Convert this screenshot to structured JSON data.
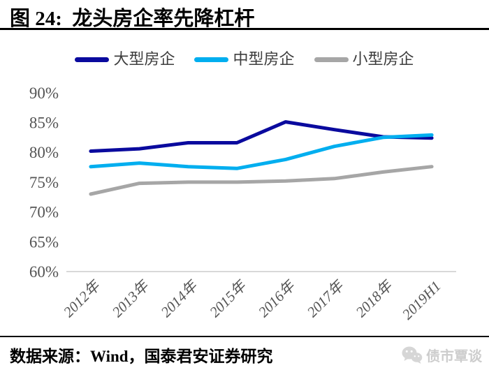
{
  "title": "图 24:  龙头房企率先降杠杆",
  "chart_data": {
    "type": "line",
    "categories": [
      "2012年",
      "2013年",
      "2014年",
      "2015年",
      "2016年",
      "2017年",
      "2018年",
      "2019H1"
    ],
    "series": [
      {
        "name": "大型房企",
        "color": "#0A0A9E",
        "values": [
          80.2,
          80.6,
          81.6,
          81.6,
          85.1,
          83.8,
          82.6,
          82.4
        ]
      },
      {
        "name": "中型房企",
        "color": "#00AEEF",
        "values": [
          77.6,
          78.2,
          77.6,
          77.3,
          78.8,
          81.0,
          82.5,
          82.9
        ]
      },
      {
        "name": "小型房企",
        "color": "#A6A6A6",
        "values": [
          73.0,
          74.8,
          75.0,
          75.0,
          75.2,
          75.6,
          76.7,
          77.6
        ]
      }
    ],
    "ylim": [
      60,
      90
    ],
    "ytick_step": 5,
    "yticks_labels": [
      "60%",
      "65%",
      "70%",
      "75%",
      "80%",
      "85%",
      "90%"
    ],
    "grid": false,
    "legend_position": "top",
    "axis_color": "#D8D8D8",
    "tick_label_color": "#545454"
  },
  "footer": {
    "source": "数据来源：Wind，国泰君安证券研究",
    "watermark": "债市覃谈"
  }
}
